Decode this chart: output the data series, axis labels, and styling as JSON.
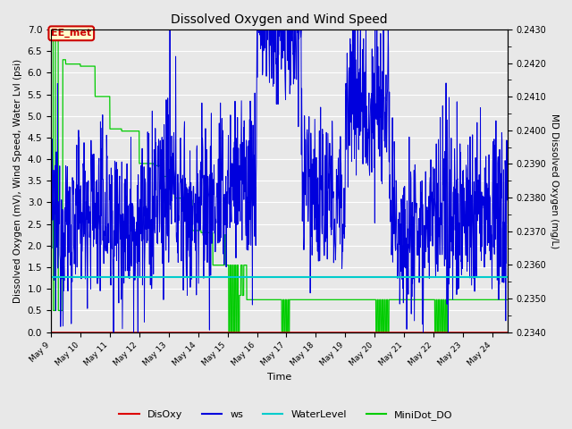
{
  "title": "Dissolved Oxygen and Wind Speed",
  "xlabel": "Time",
  "ylabel_left": "Dissolved Oxygen (mV), Wind Speed, Water Lvl (psi)",
  "ylabel_right": "MD Dissolved Oxygen (mg/L)",
  "ylim_left": [
    0.0,
    7.0
  ],
  "ylim_right": [
    0.234,
    0.243
  ],
  "yticks_left": [
    0.0,
    0.5,
    1.0,
    1.5,
    2.0,
    2.5,
    3.0,
    3.5,
    4.0,
    4.5,
    5.0,
    5.5,
    6.0,
    6.5,
    7.0
  ],
  "yticks_right": [
    0.234,
    0.235,
    0.236,
    0.237,
    0.238,
    0.239,
    0.24,
    0.241,
    0.242,
    0.243
  ],
  "xtick_positions": [
    0,
    1,
    2,
    3,
    4,
    5,
    6,
    7,
    8,
    9,
    10,
    11,
    12,
    13,
    14,
    15
  ],
  "xtick_labels": [
    "May 9",
    "May 10",
    "May 11",
    "May 12",
    "May 13",
    "May 14",
    "May 15",
    "May 16",
    "May 17",
    "May 18",
    "May 19",
    "May 20",
    "May 21",
    "May 22",
    "May 23",
    "May 24"
  ],
  "xlim": [
    0,
    15.5
  ],
  "bg_color": "#e8e8e8",
  "plot_bg_color": "#e8e8e8",
  "grid_color": "white",
  "annotation_text": "EE_met",
  "annotation_box_facecolor": "#ffffcc",
  "annotation_box_edgecolor": "#cc0000",
  "annotation_text_color": "#cc0000",
  "colors": {
    "DisOxy": "#dd0000",
    "ws": "#0000dd",
    "WaterLevel": "#00cccc",
    "MiniDot_DO": "#00cc00"
  },
  "legend_labels": [
    "DisOxy",
    "ws",
    "WaterLevel",
    "MiniDot_DO"
  ],
  "legend_colors": [
    "#dd0000",
    "#0000dd",
    "#00cccc",
    "#00cc00"
  ],
  "water_level_value": 1.28,
  "disoxy_value": 0.0
}
